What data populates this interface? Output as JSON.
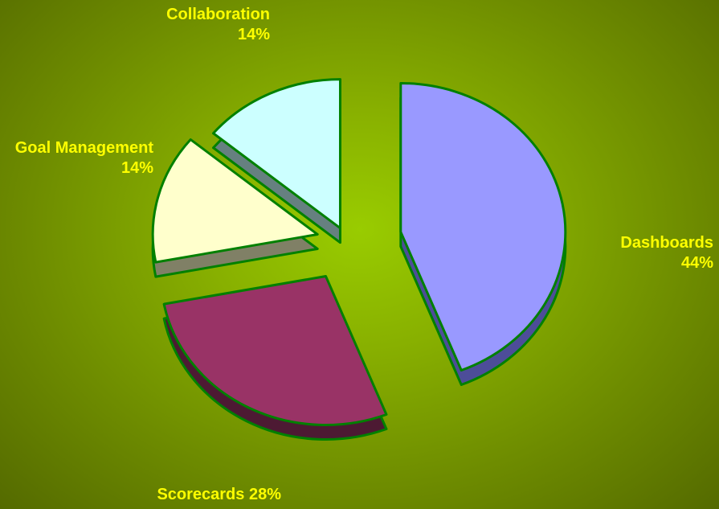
{
  "chart_data": {
    "type": "pie",
    "categories": [
      "Dashboards",
      "Scorecards",
      "Goal Management",
      "Collaboration"
    ],
    "values": [
      44,
      28,
      14,
      14
    ],
    "value_labels": [
      "44%",
      "28%",
      "14%",
      "14%"
    ],
    "colors": [
      "#9999ff",
      "#993366",
      "#ffffcc",
      "#ccffff"
    ],
    "side_colors": [
      "#4d4d99",
      "#4d1a33",
      "#808066",
      "#668080"
    ],
    "edge_color": "#008000"
  }
}
